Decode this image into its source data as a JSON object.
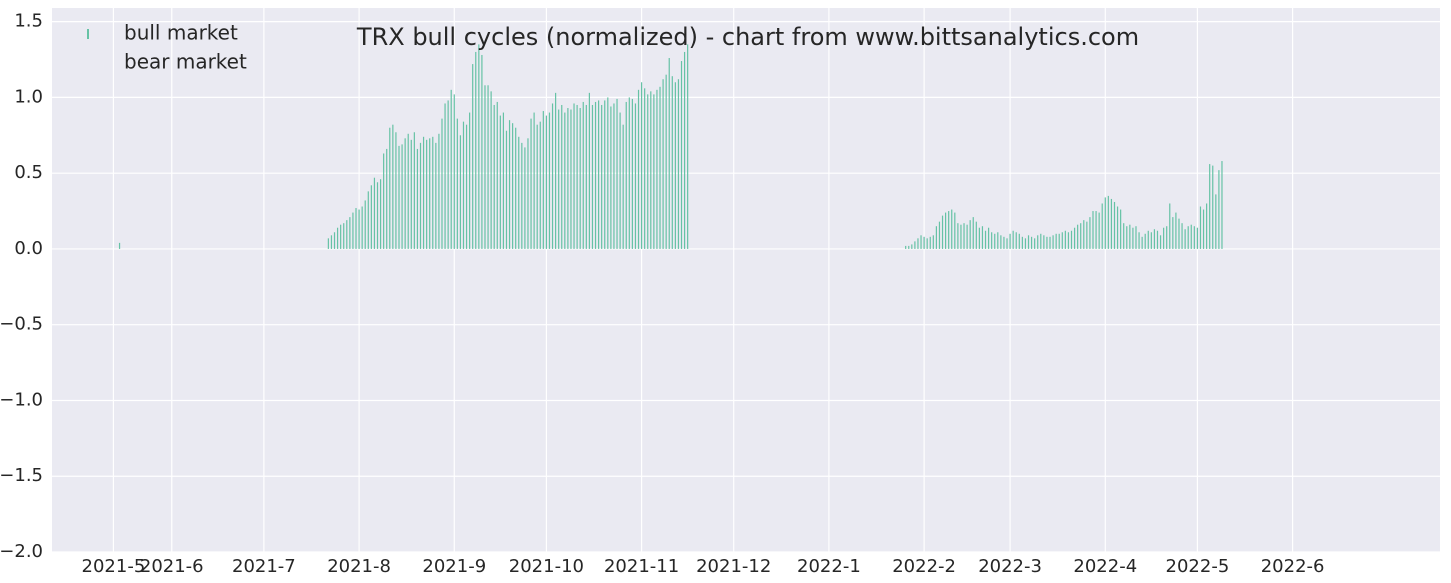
{
  "chart_data": {
    "type": "bar",
    "title": "TRX bull cycles (normalized)  - chart from www.bittsanalytics.com",
    "xlim": [
      "2021-04-23",
      "2022-07-19"
    ],
    "ylim": [
      -2.0,
      1.59
    ],
    "xticks": [
      {
        "value": "2021-05-13",
        "label": "2021-5"
      },
      {
        "value": "2021-06-01",
        "label": "2021-6"
      },
      {
        "value": "2021-07-01",
        "label": "2021-7"
      },
      {
        "value": "2021-08-01",
        "label": "2021-8"
      },
      {
        "value": "2021-09-01",
        "label": "2021-9"
      },
      {
        "value": "2021-10-01",
        "label": "2021-10"
      },
      {
        "value": "2021-11-01",
        "label": "2021-11"
      },
      {
        "value": "2021-12-01",
        "label": "2021-12"
      },
      {
        "value": "2022-01-01",
        "label": "2022-1"
      },
      {
        "value": "2022-02-01",
        "label": "2022-2"
      },
      {
        "value": "2022-03-01",
        "label": "2022-3"
      },
      {
        "value": "2022-04-01",
        "label": "2022-4"
      },
      {
        "value": "2022-05-01",
        "label": "2022-5"
      },
      {
        "value": "2022-06-01",
        "label": "2022-6"
      }
    ],
    "yticks": [
      {
        "value": -2.0,
        "label": "−2.0"
      },
      {
        "value": -1.5,
        "label": "−1.5"
      },
      {
        "value": -1.0,
        "label": "−1.0"
      },
      {
        "value": -0.5,
        "label": "−0.5"
      },
      {
        "value": 0.0,
        "label": "0.0"
      },
      0.5,
      {
        "value": 1.0,
        "label": "1.0"
      },
      1.5
    ],
    "grid": true,
    "legend": "upper-left",
    "series": [
      {
        "name": "bull market",
        "color": "#66c2a5",
        "start": [
          "2021-05-15",
          "2021-07-22",
          "2022-01-26"
        ],
        "runs": [
          [
            0.04
          ],
          [
            0.07,
            0.09,
            0.11,
            0.14,
            0.16,
            0.17,
            0.19,
            0.21,
            0.24,
            0.27,
            0.26,
            0.28,
            0.32,
            0.38,
            0.42,
            0.47,
            0.44,
            0.46,
            0.63,
            0.66,
            0.8,
            0.82,
            0.77,
            0.68,
            0.69,
            0.73,
            0.76,
            0.72,
            0.77,
            0.66,
            0.7,
            0.74,
            0.72,
            0.73,
            0.74,
            0.7,
            0.76,
            0.86,
            0.96,
            0.98,
            1.05,
            1.02,
            0.86,
            0.75,
            0.84,
            0.82,
            0.9,
            1.22,
            1.3,
            1.35,
            1.28,
            1.08,
            1.08,
            1.04,
            0.95,
            0.97,
            0.88,
            0.9,
            0.78,
            0.85,
            0.83,
            0.8,
            0.74,
            0.7,
            0.67,
            0.73,
            0.86,
            0.9,
            0.82,
            0.84,
            0.91,
            0.88,
            0.9,
            0.96,
            1.03,
            0.92,
            0.95,
            0.9,
            0.93,
            0.92,
            0.96,
            0.95,
            0.93,
            0.97,
            0.95,
            1.03,
            0.95,
            0.97,
            0.98,
            0.95,
            0.98,
            1.0,
            0.94,
            0.96,
            0.99,
            0.9,
            0.82,
            0.97,
            1.0,
            0.99,
            0.96,
            1.05,
            1.1,
            1.06,
            1.02,
            1.04,
            1.02,
            1.05,
            1.07,
            1.12,
            1.15,
            1.26,
            1.14,
            1.1,
            1.12,
            1.24,
            1.3,
            1.35
          ],
          [
            0.02,
            0.02,
            0.03,
            0.05,
            0.07,
            0.09,
            0.08,
            0.07,
            0.08,
            0.09,
            0.15,
            0.18,
            0.22,
            0.24,
            0.25,
            0.26,
            0.24,
            0.17,
            0.16,
            0.17,
            0.16,
            0.19,
            0.21,
            0.18,
            0.14,
            0.15,
            0.12,
            0.14,
            0.11,
            0.1,
            0.11,
            0.09,
            0.08,
            0.07,
            0.1,
            0.12,
            0.11,
            0.1,
            0.08,
            0.07,
            0.09,
            0.08,
            0.07,
            0.09,
            0.1,
            0.09,
            0.08,
            0.08,
            0.09,
            0.1,
            0.1,
            0.11,
            0.12,
            0.11,
            0.12,
            0.14,
            0.16,
            0.17,
            0.19,
            0.18,
            0.21,
            0.25,
            0.25,
            0.24,
            0.3,
            0.34,
            0.35,
            0.33,
            0.31,
            0.28,
            0.26,
            0.17,
            0.15,
            0.16,
            0.14,
            0.15,
            0.11,
            0.08,
            0.1,
            0.12,
            0.11,
            0.13,
            0.12,
            0.09,
            0.14,
            0.15,
            0.3,
            0.21,
            0.24,
            0.2,
            0.17,
            0.13,
            0.15,
            0.16,
            0.15,
            0.14,
            0.28,
            0.26,
            0.3,
            0.56,
            0.55,
            0.36,
            0.52,
            0.58
          ]
        ]
      },
      {
        "name": "bear market",
        "color": "#eaeaf2",
        "start": [],
        "runs": []
      }
    ]
  }
}
